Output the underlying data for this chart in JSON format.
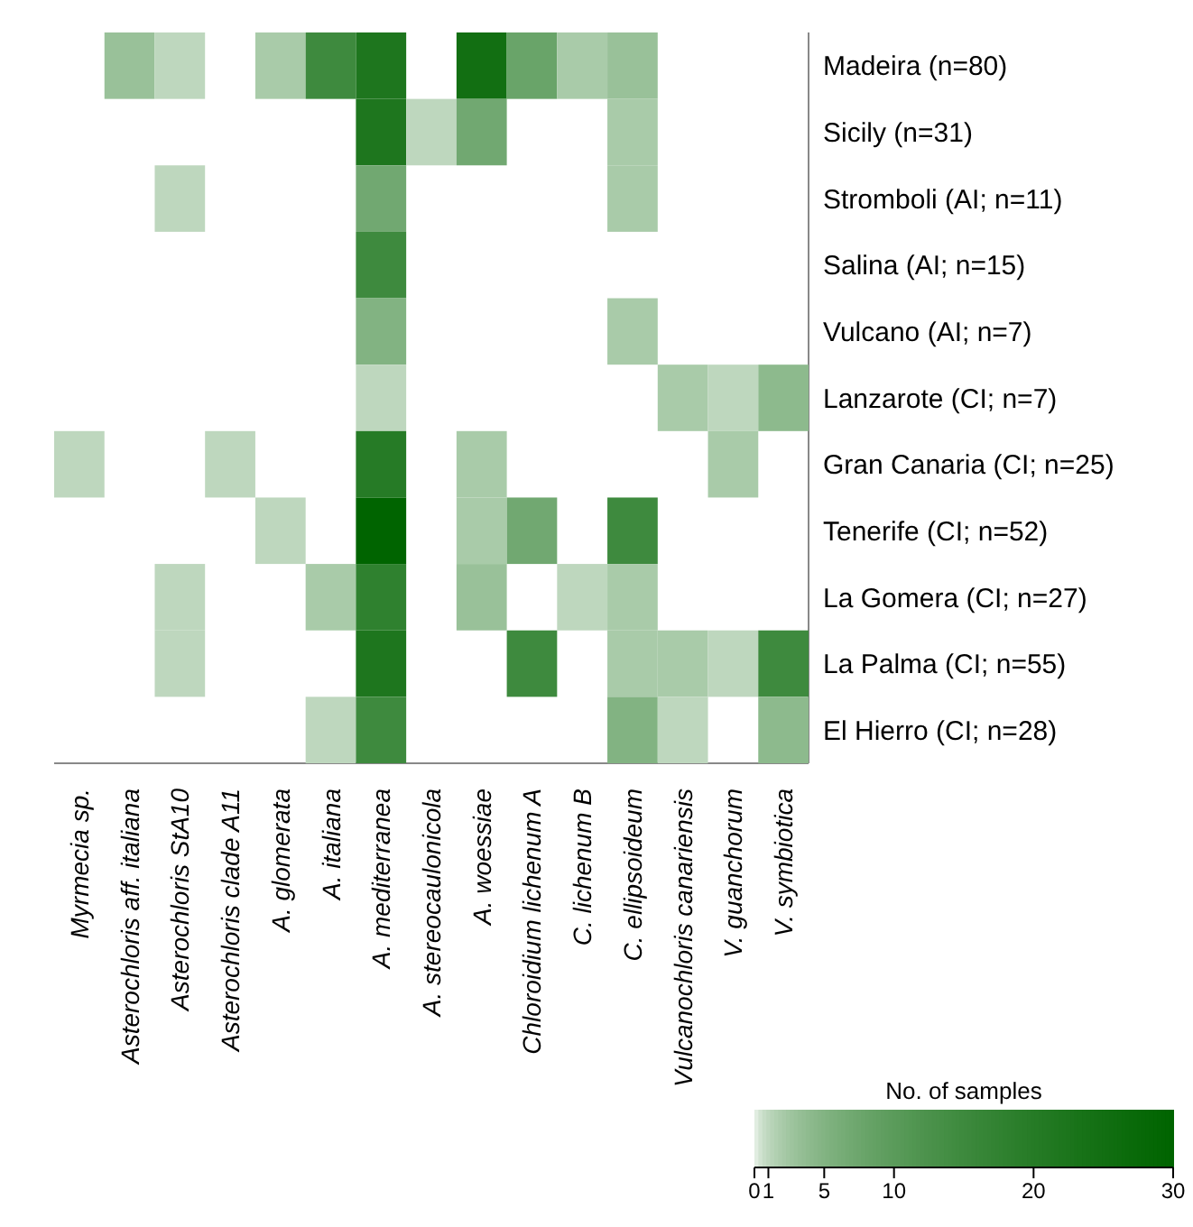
{
  "chart_data": {
    "type": "heatmap",
    "clabel": "No. of samples",
    "categories": [
      "Myrmecia sp.",
      "Asterochloris aff. italiana",
      "Asterochloris StA10",
      "Asterochloris clade A11",
      "A. glomerata",
      "A. italiana",
      "A. mediterranea",
      "A. stereocaulonicola",
      "A. woessiae",
      "Chloroidium lichenum A",
      "C. lichenum B",
      "C. ellipsoideum",
      "Vulcanochloris canariensis",
      "V. guanchorum",
      "V. symbiotica"
    ],
    "y_categories": [
      "Madeira (n=80)",
      "Sicily (n=31)",
      "Stromboli (AI; n=11)",
      "Salina (AI; n=15)",
      "Vulcano (AI; n=7)",
      "Lanzarote (CI; n=7)",
      "Gran Canaria (CI; n=25)",
      "Tenerife (CI; n=52)",
      "La Gomera (CI; n=27)",
      "La Palma (CI; n=55)",
      "El Hierro (CI; n=28)"
    ],
    "cells": [
      [
        null,
        3,
        1,
        null,
        2,
        15,
        22,
        null,
        25,
        8,
        2,
        3,
        null,
        null,
        null
      ],
      [
        null,
        null,
        null,
        null,
        null,
        null,
        22,
        1,
        7,
        null,
        null,
        2,
        null,
        null,
        null
      ],
      [
        null,
        null,
        1,
        null,
        null,
        null,
        7,
        null,
        null,
        null,
        null,
        2,
        null,
        null,
        null
      ],
      [
        null,
        null,
        null,
        null,
        null,
        null,
        15,
        null,
        null,
        null,
        null,
        null,
        null,
        null,
        null
      ],
      [
        null,
        null,
        null,
        null,
        null,
        null,
        5,
        null,
        null,
        null,
        null,
        2,
        null,
        null,
        null
      ],
      [
        null,
        null,
        null,
        null,
        null,
        null,
        1,
        null,
        null,
        null,
        null,
        null,
        2,
        1,
        4
      ],
      [
        1,
        null,
        null,
        1,
        null,
        null,
        20,
        null,
        2,
        null,
        null,
        null,
        null,
        2,
        null
      ],
      [
        null,
        null,
        null,
        null,
        1,
        null,
        30,
        null,
        2,
        7,
        null,
        15,
        null,
        null,
        null
      ],
      [
        null,
        null,
        1,
        null,
        null,
        2,
        18,
        null,
        3,
        null,
        1,
        2,
        null,
        null,
        null
      ],
      [
        null,
        null,
        1,
        null,
        null,
        null,
        22,
        null,
        null,
        15,
        null,
        2,
        2,
        1,
        15
      ],
      [
        null,
        null,
        null,
        null,
        null,
        1,
        15,
        null,
        null,
        null,
        null,
        5,
        1,
        null,
        4
      ]
    ],
    "clim": [
      0,
      30
    ],
    "cticks": [
      0,
      1,
      5,
      10,
      20,
      30
    ]
  }
}
